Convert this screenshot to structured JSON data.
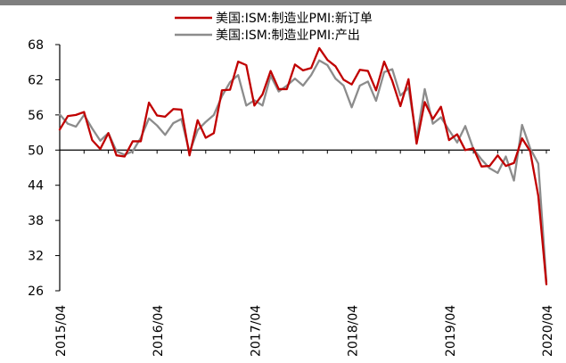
{
  "chart_data": {
    "type": "line",
    "title": "",
    "xlabel": "",
    "ylabel": "",
    "ylim": [
      26,
      68
    ],
    "yticks": [
      26,
      32,
      38,
      44,
      50,
      56,
      62,
      68
    ],
    "x_tick_labels": [
      "2015/04",
      "2016/04",
      "2017/04",
      "2018/04",
      "2019/04",
      "2020/04"
    ],
    "x_start": "2015/04",
    "x_end": "2020/04",
    "reference_line": 50,
    "legend_position": "top-center",
    "colors": {
      "new_orders": "#c00000",
      "production": "#8c8c8c",
      "axis": "#000000",
      "top_rule": "#7f7f7f"
    },
    "series": [
      {
        "name": "美国:ISM:制造业PMI:新订单",
        "values": [
          53.5,
          55.8,
          56.0,
          56.5,
          51.7,
          50.2,
          52.9,
          49.1,
          48.9,
          51.5,
          51.5,
          58.1,
          55.9,
          55.7,
          57.0,
          56.9,
          49.1,
          55.1,
          52.1,
          52.9,
          60.2,
          60.3,
          65.1,
          64.5,
          57.6,
          59.5,
          63.5,
          60.4,
          60.4,
          64.6,
          63.6,
          64.0,
          67.4,
          65.4,
          64.3,
          62.0,
          61.2,
          63.7,
          63.5,
          60.2,
          65.1,
          61.8,
          57.5,
          62.1,
          51.1,
          58.2,
          55.3,
          57.4,
          51.7,
          52.7,
          50.0,
          50.3,
          47.2,
          47.3,
          49.1,
          47.3,
          47.8,
          52.0,
          49.8,
          42.2,
          27.1
        ]
      },
      {
        "name": "美国:ISM:制造业PMI:产出",
        "values": [
          56.1,
          54.5,
          54.0,
          56.0,
          53.7,
          51.6,
          52.9,
          49.8,
          49.2,
          49.8,
          52.1,
          55.4,
          54.2,
          52.6,
          54.6,
          55.3,
          49.6,
          53.4,
          54.8,
          56.0,
          59.2,
          61.6,
          62.8,
          57.6,
          58.5,
          57.6,
          62.7,
          60.0,
          61.0,
          62.2,
          61.0,
          62.8,
          65.3,
          64.5,
          62.2,
          61.0,
          57.3,
          61.0,
          61.7,
          58.4,
          63.3,
          63.8,
          59.3,
          60.6,
          52.0,
          60.4,
          54.5,
          55.6,
          53.4,
          51.3,
          54.1,
          50.2,
          48.4,
          46.9,
          46.1,
          48.9,
          44.8,
          54.3,
          50.3,
          47.7,
          27.5
        ]
      }
    ]
  }
}
